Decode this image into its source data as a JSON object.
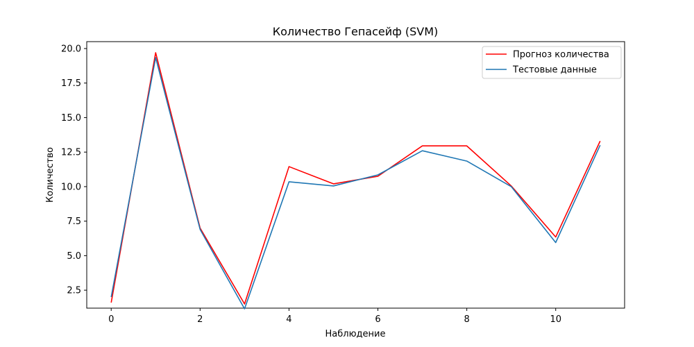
{
  "chart_data": {
    "type": "line",
    "title": "Количество Гепасейф  (SVM)",
    "xlabel": "Наблюдение",
    "ylabel": "Количество",
    "xlim": [
      -0.55,
      11.55
    ],
    "ylim": [
      1.2,
      20.5
    ],
    "x_ticks": [
      0,
      2,
      4,
      6,
      8,
      10
    ],
    "x_tick_labels": [
      "0",
      "2",
      "4",
      "6",
      "8",
      "10"
    ],
    "y_ticks": [
      2.5,
      5.0,
      7.5,
      10.0,
      12.5,
      15.0,
      17.5,
      20.0
    ],
    "y_tick_labels": [
      "2.5",
      "5.0",
      "7.5",
      "10.0",
      "12.5",
      "15.0",
      "17.5",
      "20.0"
    ],
    "grid": false,
    "legend_position": "top-right",
    "x": [
      0,
      1,
      2,
      3,
      4,
      5,
      6,
      7,
      8,
      9,
      10,
      11
    ],
    "series": [
      {
        "name": "Прогноз количества",
        "color": "#ff0000",
        "values": [
          1.6,
          19.7,
          7.0,
          1.5,
          11.45,
          10.2,
          10.75,
          12.95,
          12.95,
          10.05,
          6.35,
          13.3
        ]
      },
      {
        "name": "Тестовые данные",
        "color": "#1f77b4",
        "values": [
          2.0,
          19.35,
          6.9,
          1.15,
          10.35,
          10.05,
          10.85,
          12.6,
          11.85,
          10.0,
          5.95,
          13.0
        ]
      }
    ]
  }
}
